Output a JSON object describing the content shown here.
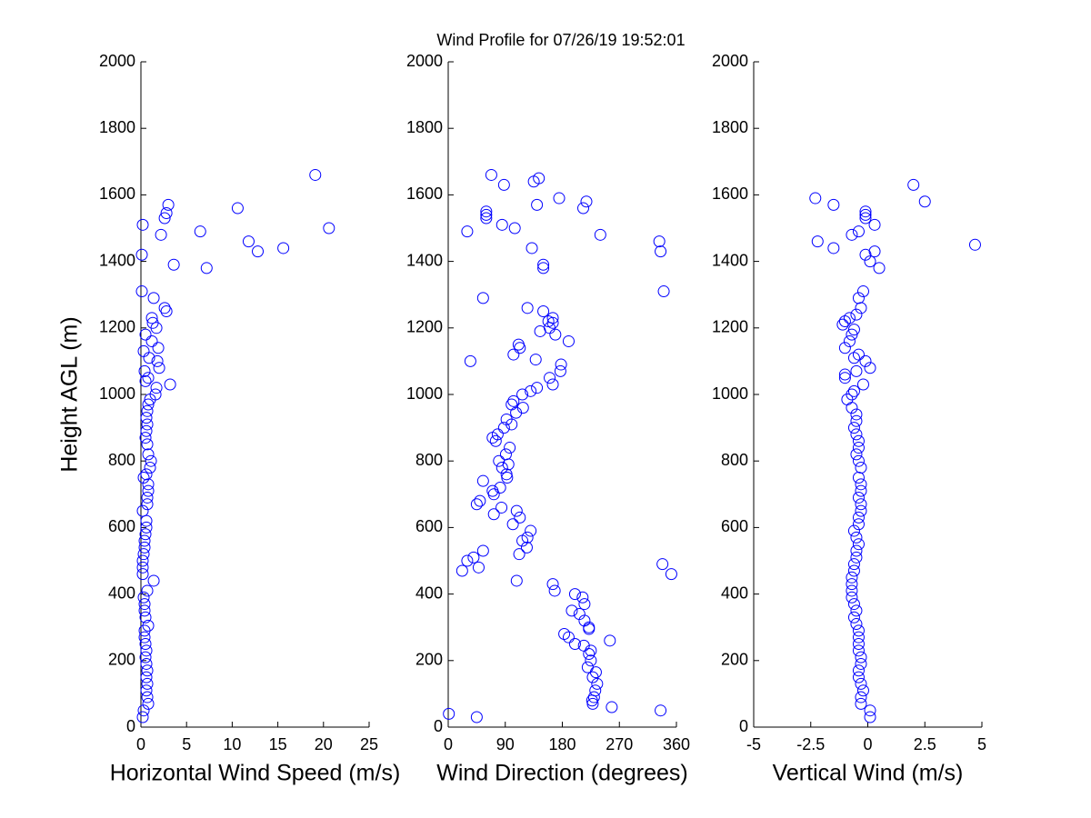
{
  "title": "Wind Profile for  07/26/19 19:52:01",
  "chart_data": [
    {
      "type": "scatter",
      "xlabel": "Horizontal Wind Speed (m/s)",
      "ylabel": "Height AGL (m)",
      "color": "#0000ff",
      "xlim": [
        0,
        25
      ],
      "xticks": [
        0,
        5,
        10,
        15,
        20,
        25
      ],
      "ylim": [
        0,
        2000
      ],
      "yticks": [
        0,
        200,
        400,
        600,
        800,
        1000,
        1200,
        1400,
        1600,
        1800,
        2000
      ],
      "x": [
        0.2,
        0.3,
        0.8,
        0.7,
        0.6,
        0.7,
        0.6,
        0.7,
        0.6,
        0.5,
        0.6,
        0.5,
        0.4,
        0.4,
        0.8,
        0.5,
        0.4,
        0.4,
        0.3,
        0.7,
        1.4,
        0.2,
        0.2,
        0.2,
        0.3,
        0.4,
        0.4,
        0.5,
        0.6,
        0.6,
        0.2,
        0.7,
        0.7,
        0.8,
        0.8,
        0.3,
        0.6,
        1.0,
        1.1,
        0.8,
        0.7,
        0.5,
        0.6,
        0.7,
        0.6,
        0.7,
        0.8,
        1.0,
        1.6,
        1.7,
        0.5,
        0.8,
        3.2,
        0.4,
        2.0,
        1.8,
        0.9,
        0.3,
        1.9,
        1.2,
        0.5,
        1.7,
        1.3,
        1.2,
        2.8,
        2.6,
        1.4,
        0.1,
        3.6,
        7.2,
        0.1,
        12.8,
        15.6,
        11.8,
        2.2,
        6.5,
        20.6,
        0.2,
        2.6,
        2.8,
        10.6,
        3.0,
        19.1
      ],
      "y": [
        30,
        50,
        70,
        90,
        110,
        130,
        150,
        170,
        190,
        210,
        230,
        250,
        270,
        290,
        305,
        330,
        350,
        370,
        390,
        410,
        440,
        460,
        480,
        500,
        520,
        540,
        560,
        580,
        600,
        620,
        650,
        670,
        690,
        710,
        730,
        750,
        760,
        780,
        800,
        820,
        850,
        870,
        890,
        910,
        930,
        950,
        970,
        985,
        1000,
        1020,
        1040,
        1050,
        1030,
        1070,
        1080,
        1100,
        1110,
        1130,
        1140,
        1160,
        1180,
        1200,
        1215,
        1230,
        1250,
        1260,
        1290,
        1310,
        1390,
        1380,
        1420,
        1430,
        1440,
        1460,
        1480,
        1490,
        1500,
        1510,
        1530,
        1545,
        1560,
        1570,
        1660
      ]
    },
    {
      "type": "scatter",
      "xlabel": "Wind Direction (degrees)",
      "color": "#0000ff",
      "xlim": [
        0,
        360
      ],
      "xticks": [
        0,
        90,
        180,
        270,
        360
      ],
      "ylim": [
        0,
        2000
      ],
      "yticks": [
        0,
        200,
        400,
        600,
        800,
        1000,
        1200,
        1400,
        1600,
        1800,
        2000
      ],
      "x": [
        1,
        45,
        258,
        335,
        228,
        227,
        230,
        232,
        235,
        228,
        233,
        220,
        225,
        222,
        225,
        214,
        200,
        255,
        190,
        183,
        222,
        215,
        207,
        222,
        195,
        215,
        212,
        200,
        168,
        165,
        108,
        338,
        352,
        22,
        48,
        30,
        40,
        55,
        112,
        124,
        117,
        125,
        130,
        102,
        113,
        108,
        84,
        72,
        45,
        50,
        72,
        82,
        70,
        55,
        93,
        92,
        85,
        80,
        95,
        91,
        97,
        75,
        70,
        78,
        88,
        100,
        92,
        107,
        118,
        100,
        103,
        117,
        130,
        140,
        165,
        160,
        177,
        178,
        35,
        138,
        103,
        113,
        111,
        190,
        169,
        145,
        160,
        165,
        158,
        165,
        150,
        125,
        55,
        340,
        150,
        150,
        335,
        132,
        333,
        240,
        30,
        85,
        105,
        60,
        60,
        60,
        213,
        140,
        175,
        218,
        135,
        143,
        88,
        68
      ],
      "y": [
        40,
        30,
        60,
        50,
        70,
        80,
        90,
        110,
        130,
        150,
        165,
        180,
        200,
        220,
        230,
        245,
        250,
        260,
        270,
        280,
        300,
        320,
        340,
        295,
        350,
        370,
        390,
        400,
        410,
        430,
        440,
        490,
        460,
        470,
        480,
        500,
        510,
        530,
        520,
        540,
        560,
        570,
        590,
        610,
        630,
        650,
        660,
        640,
        670,
        680,
        700,
        720,
        710,
        740,
        750,
        760,
        780,
        800,
        790,
        820,
        840,
        860,
        870,
        880,
        900,
        910,
        925,
        945,
        960,
        970,
        980,
        1000,
        1010,
        1020,
        1030,
        1050,
        1070,
        1090,
        1100,
        1105,
        1120,
        1140,
        1150,
        1160,
        1180,
        1190,
        1200,
        1215,
        1220,
        1230,
        1250,
        1260,
        1290,
        1310,
        1380,
        1390,
        1430,
        1440,
        1460,
        1480,
        1490,
        1510,
        1500,
        1530,
        1540,
        1550,
        1560,
        1570,
        1590,
        1580,
        1640,
        1650,
        1630,
        1660
      ]
    },
    {
      "type": "scatter",
      "xlabel": "Vertical Wind (m/s)",
      "color": "#0000ff",
      "xlim": [
        -5,
        5
      ],
      "xticks": [
        -5,
        -2.5,
        0,
        2.5,
        5
      ],
      "ylim": [
        0,
        2000
      ],
      "yticks": [
        0,
        200,
        400,
        600,
        800,
        1000,
        1200,
        1400,
        1600,
        1800,
        2000
      ],
      "x": [
        0.1,
        0.1,
        -0.3,
        -0.3,
        -0.2,
        -0.3,
        -0.4,
        -0.4,
        -0.3,
        -0.3,
        -0.4,
        -0.4,
        -0.4,
        -0.4,
        -0.5,
        -0.6,
        -0.5,
        -0.6,
        -0.7,
        -0.7,
        -0.7,
        -0.7,
        -0.6,
        -0.6,
        -0.5,
        -0.5,
        -0.4,
        -0.5,
        -0.6,
        -0.4,
        -0.4,
        -0.3,
        -0.3,
        -0.4,
        -0.3,
        -0.3,
        -0.4,
        -0.3,
        -0.4,
        -0.5,
        -0.4,
        -0.4,
        -0.5,
        -0.6,
        -0.5,
        -0.5,
        -0.7,
        -0.9,
        -0.7,
        -0.6,
        -0.2,
        -1.0,
        -1.0,
        -0.5,
        0.1,
        -0.1,
        -0.6,
        -0.4,
        -1.0,
        -0.8,
        -0.7,
        -0.6,
        -1.1,
        -1.0,
        -0.8,
        -0.5,
        -0.3,
        -0.4,
        -0.2,
        0.5,
        0.1,
        -0.1,
        0.3,
        4.7,
        -2.2,
        -1.5,
        -0.7,
        -0.4,
        0.3,
        -0.1,
        -0.1,
        -0.1,
        -1.5,
        -2.3,
        2.5,
        2.0
      ],
      "y": [
        30,
        50,
        70,
        90,
        110,
        130,
        150,
        170,
        190,
        210,
        230,
        250,
        270,
        290,
        310,
        330,
        350,
        370,
        390,
        410,
        430,
        450,
        470,
        490,
        510,
        530,
        550,
        570,
        590,
        610,
        630,
        650,
        670,
        690,
        710,
        730,
        750,
        780,
        800,
        820,
        840,
        860,
        880,
        900,
        920,
        940,
        960,
        985,
        1000,
        1010,
        1030,
        1050,
        1060,
        1070,
        1080,
        1100,
        1110,
        1120,
        1140,
        1160,
        1180,
        1195,
        1210,
        1220,
        1230,
        1240,
        1260,
        1290,
        1310,
        1380,
        1400,
        1420,
        1430,
        1450,
        1460,
        1440,
        1480,
        1490,
        1510,
        1530,
        1540,
        1550,
        1570,
        1590,
        1580,
        1630
      ]
    }
  ]
}
